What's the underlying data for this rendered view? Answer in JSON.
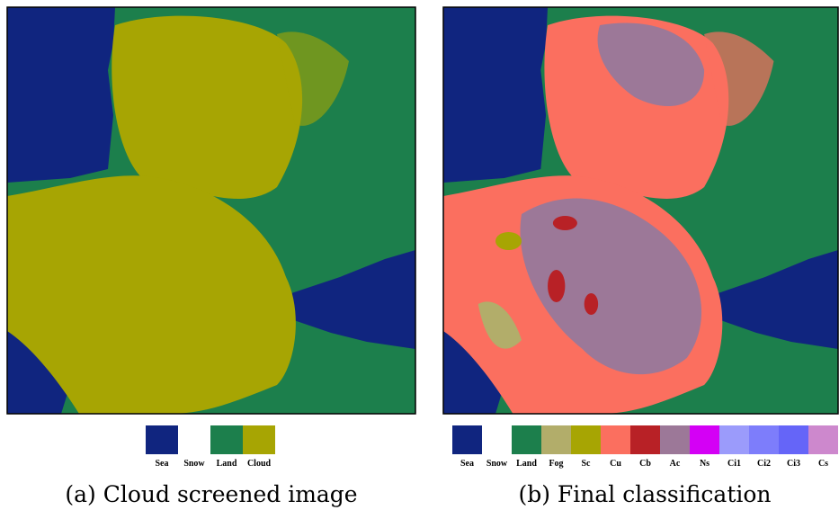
{
  "panels": [
    {
      "caption": "(a) Cloud screened image",
      "legend": [
        {
          "label": "Sea",
          "color": "#10257f"
        },
        {
          "label": "Snow",
          "color": "#ffffff"
        },
        {
          "label": "Land",
          "color": "#1c7f4c"
        },
        {
          "label": "Cloud",
          "color": "#a7a503"
        }
      ]
    },
    {
      "caption": "(b) Final classification",
      "legend": [
        {
          "label": "Sea",
          "color": "#10257f"
        },
        {
          "label": "Snow",
          "color": "#ffffff"
        },
        {
          "label": "Land",
          "color": "#1c7f4c"
        },
        {
          "label": "Fog",
          "color": "#b2ad6a"
        },
        {
          "label": "Sc",
          "color": "#a7a503"
        },
        {
          "label": "Cu",
          "color": "#fb6f5f"
        },
        {
          "label": "Cb",
          "color": "#b82126"
        },
        {
          "label": "Ac",
          "color": "#9c7898"
        },
        {
          "label": "Ns",
          "color": "#d400f5"
        },
        {
          "label": "Ci1",
          "color": "#9b9bfb"
        },
        {
          "label": "Ci2",
          "color": "#7d7dfb"
        },
        {
          "label": "Ci3",
          "color": "#6565f8"
        },
        {
          "label": "Cs",
          "color": "#cd88cd"
        }
      ]
    }
  ]
}
